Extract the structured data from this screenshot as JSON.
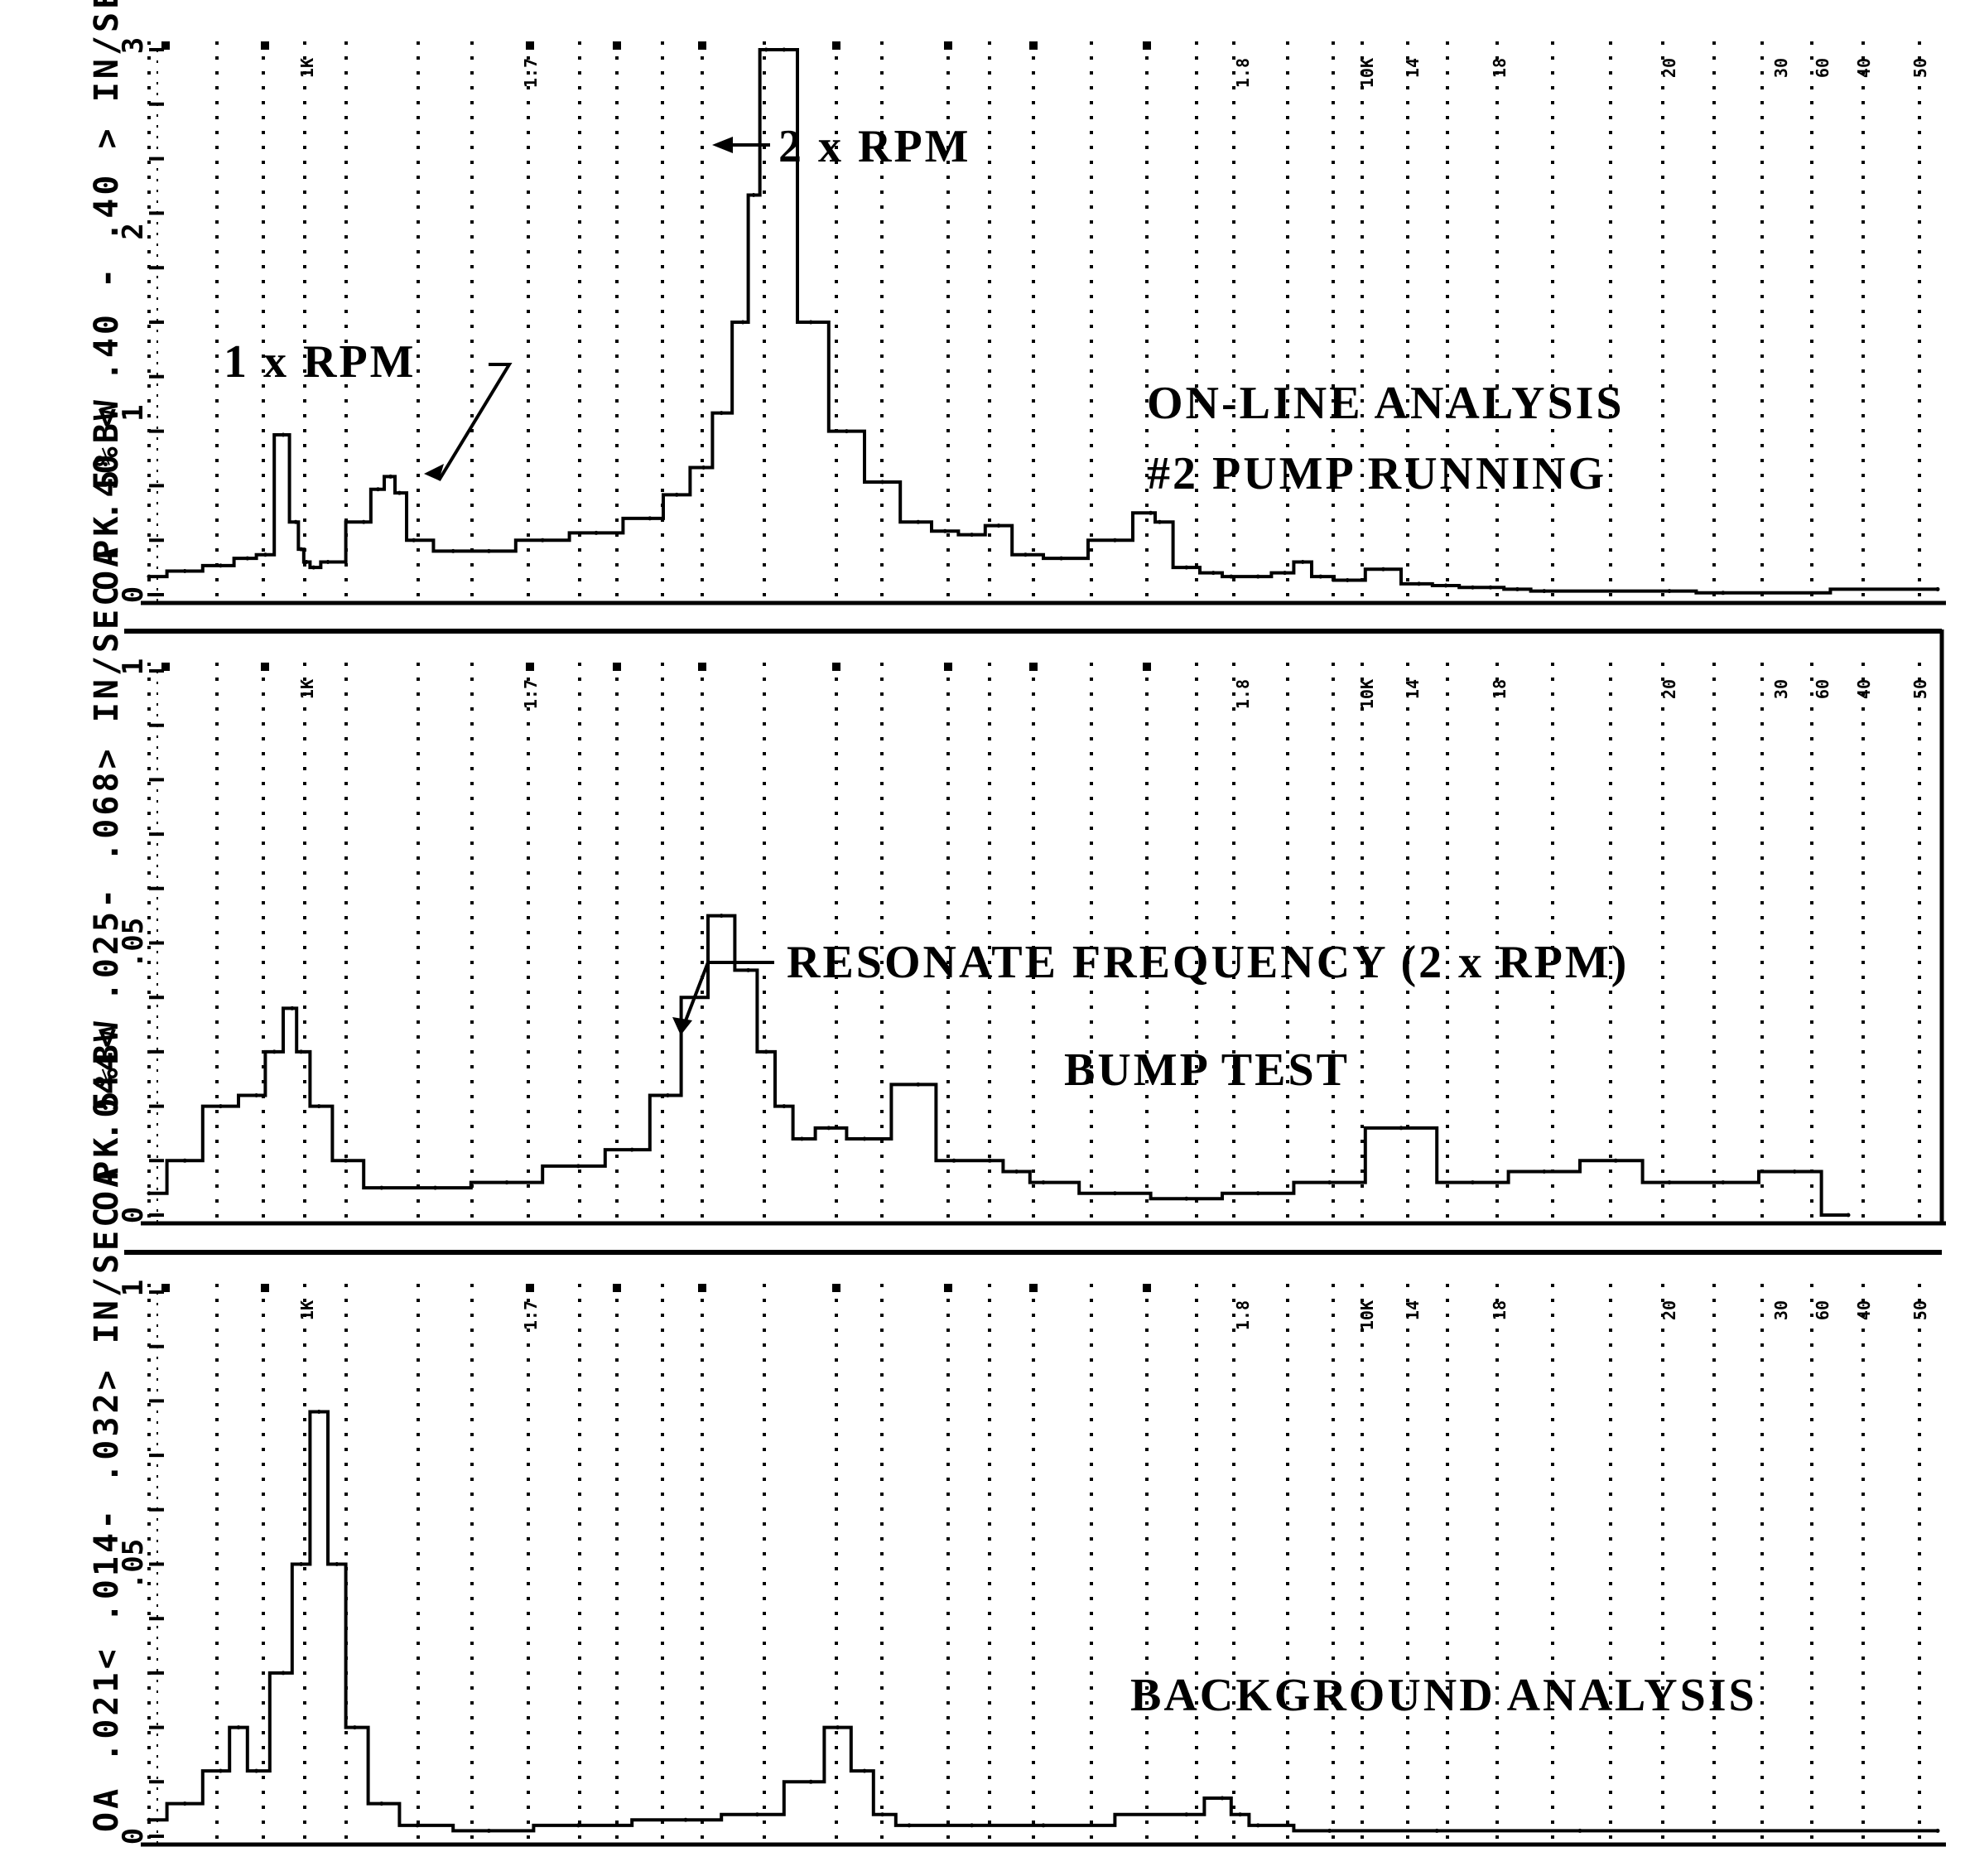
{
  "chart_data": [
    {
      "type": "line",
      "panel": "top",
      "title": "ON-LINE ANALYSIS",
      "subtitle": "#2 PUMP RUNNING",
      "ylabel": "OA .40 < .40 - .40 > IN/SEC PK 5%BW",
      "ylim": [
        0,
        3
      ],
      "y_ticks": [
        "3",
        "2",
        "1",
        "0"
      ],
      "x_tick_labels": [
        "1K",
        "1.7",
        "1.8",
        "10K",
        "14",
        "18",
        "20",
        "30",
        "40",
        "50",
        "60"
      ],
      "annotations": [
        "1 x RPM",
        "2 x RPM"
      ],
      "series": [
        {
          "x": [
            0,
            2,
            4,
            5.5,
            6.5,
            7.5,
            8.2,
            8.5,
            8.8,
            9.2,
            10,
            12,
            12.8,
            13.5,
            14,
            14.8,
            17,
            19,
            22,
            25,
            28,
            29.5,
            31,
            32,
            33.2,
            33.8,
            34.5,
            35.5,
            37,
            39,
            41,
            43,
            44.5,
            46,
            47.5,
            49,
            51,
            54,
            56,
            56.5,
            58,
            59.5,
            60.5,
            62,
            63.5,
            64.5,
            65.5,
            67,
            69,
            71,
            72.5,
            74,
            75,
            76.5,
            78,
            85,
            88,
            100
          ],
          "values": [
            0.1,
            0.13,
            0.16,
            0.2,
            0.22,
            0.88,
            0.4,
            0.25,
            0.18,
            0.15,
            0.18,
            0.4,
            0.58,
            0.65,
            0.56,
            0.3,
            0.24,
            0.24,
            0.3,
            0.34,
            0.42,
            0.55,
            0.7,
            1.0,
            1.5,
            2.2,
            3.0,
            3.0,
            1.5,
            0.9,
            0.62,
            0.4,
            0.35,
            0.33,
            0.38,
            0.22,
            0.2,
            0.3,
            0.45,
            0.4,
            0.15,
            0.12,
            0.1,
            0.1,
            0.12,
            0.18,
            0.1,
            0.08,
            0.14,
            0.06,
            0.05,
            0.04,
            0.04,
            0.03,
            0.02,
            0.02,
            0.01,
            0.03
          ]
        }
      ]
    },
    {
      "type": "line",
      "panel": "middle",
      "title": "BUMP TEST",
      "ylabel": "OA .044< .025- .068> IN/SEC PK 5%BW",
      "ylim": [
        0,
        0.1
      ],
      "y_ticks": [
        "1",
        ".05",
        "0"
      ],
      "x_tick_labels": [
        "1K",
        "1.7",
        "1.8",
        "10K",
        "14",
        "18",
        "20",
        "30",
        "40",
        "50",
        "60"
      ],
      "annotations": [
        "RESONATE FREQUENCY (2 x RPM)"
      ],
      "series": [
        {
          "x": [
            0,
            2,
            4,
            6,
            7,
            8,
            8.5,
            9.5,
            11,
            13,
            16,
            20,
            24,
            27,
            29,
            30.5,
            32,
            33.5,
            34.5,
            35.5,
            36.5,
            38,
            40,
            43,
            45,
            47,
            48.5,
            50,
            54,
            58,
            62,
            66,
            70,
            74,
            78,
            82,
            85,
            88,
            92,
            95
          ],
          "values": [
            0.004,
            0.01,
            0.02,
            0.022,
            0.03,
            0.038,
            0.03,
            0.02,
            0.01,
            0.005,
            0.005,
            0.006,
            0.009,
            0.012,
            0.022,
            0.04,
            0.055,
            0.045,
            0.03,
            0.02,
            0.014,
            0.016,
            0.014,
            0.024,
            0.01,
            0.01,
            0.008,
            0.006,
            0.004,
            0.003,
            0.004,
            0.006,
            0.016,
            0.006,
            0.008,
            0.01,
            0.006,
            0.006,
            0.008,
            0.0
          ]
        }
      ]
    },
    {
      "type": "line",
      "panel": "bottom",
      "title": "BACKGROUND ANALYSIS",
      "ylabel": "OA .021< .014- .032> IN/SEC PK 5%BW",
      "ylim": [
        0,
        0.1
      ],
      "y_ticks": [
        "1",
        ".05",
        "0"
      ],
      "x_tick_labels": [
        "1K",
        "1.7",
        "1.8",
        "10K",
        "14",
        "18",
        "20",
        "30",
        "40",
        "50",
        "60"
      ],
      "annotations": [],
      "series": [
        {
          "x": [
            0,
            2,
            4,
            5,
            6,
            7.5,
            8.5,
            9.5,
            10.5,
            11.5,
            13,
            15,
            19,
            24,
            30,
            34,
            37,
            38.5,
            40,
            41,
            42.5,
            46,
            50,
            58,
            60,
            61,
            62,
            66,
            72,
            80,
            100
          ],
          "values": [
            0.003,
            0.006,
            0.012,
            0.02,
            0.012,
            0.03,
            0.05,
            0.078,
            0.05,
            0.02,
            0.006,
            0.002,
            0.001,
            0.002,
            0.003,
            0.004,
            0.01,
            0.02,
            0.012,
            0.004,
            0.002,
            0.002,
            0.002,
            0.004,
            0.007,
            0.004,
            0.002,
            0.001,
            0.001,
            0.001,
            0.001
          ]
        }
      ]
    }
  ]
}
